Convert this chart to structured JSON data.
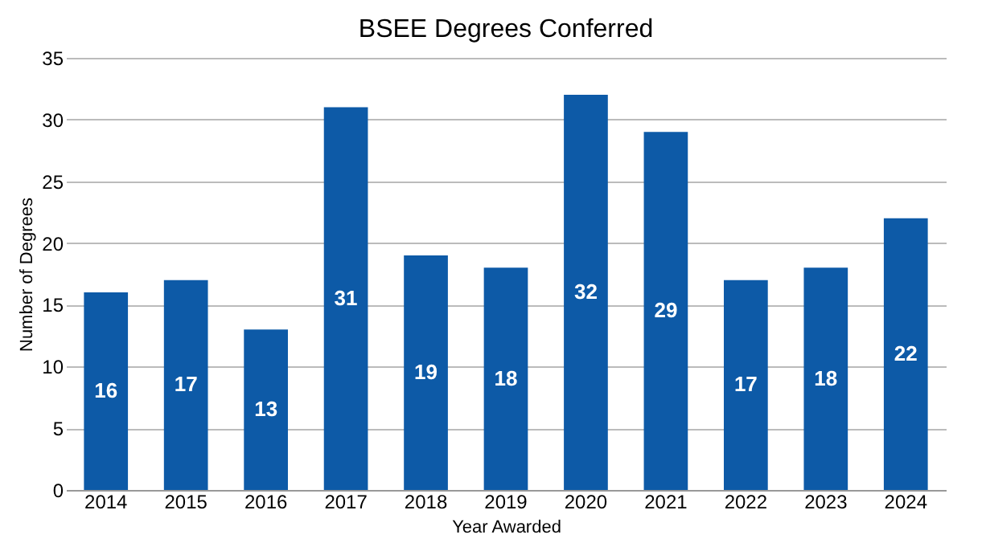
{
  "chart_data": {
    "type": "bar",
    "title": "BSEE Degrees Conferred",
    "xlabel": "Year Awarded",
    "ylabel": "Number of Degrees",
    "categories": [
      "2014",
      "2015",
      "2016",
      "2017",
      "2018",
      "2019",
      "2020",
      "2021",
      "2022",
      "2023",
      "2024"
    ],
    "values": [
      16,
      17,
      13,
      31,
      19,
      18,
      32,
      29,
      17,
      18,
      22
    ],
    "color": "#0d5aa7",
    "ylim": [
      0,
      35
    ],
    "yticks": [
      0,
      5,
      10,
      15,
      20,
      25,
      30,
      35
    ],
    "grid": "y",
    "data_labels": true
  }
}
